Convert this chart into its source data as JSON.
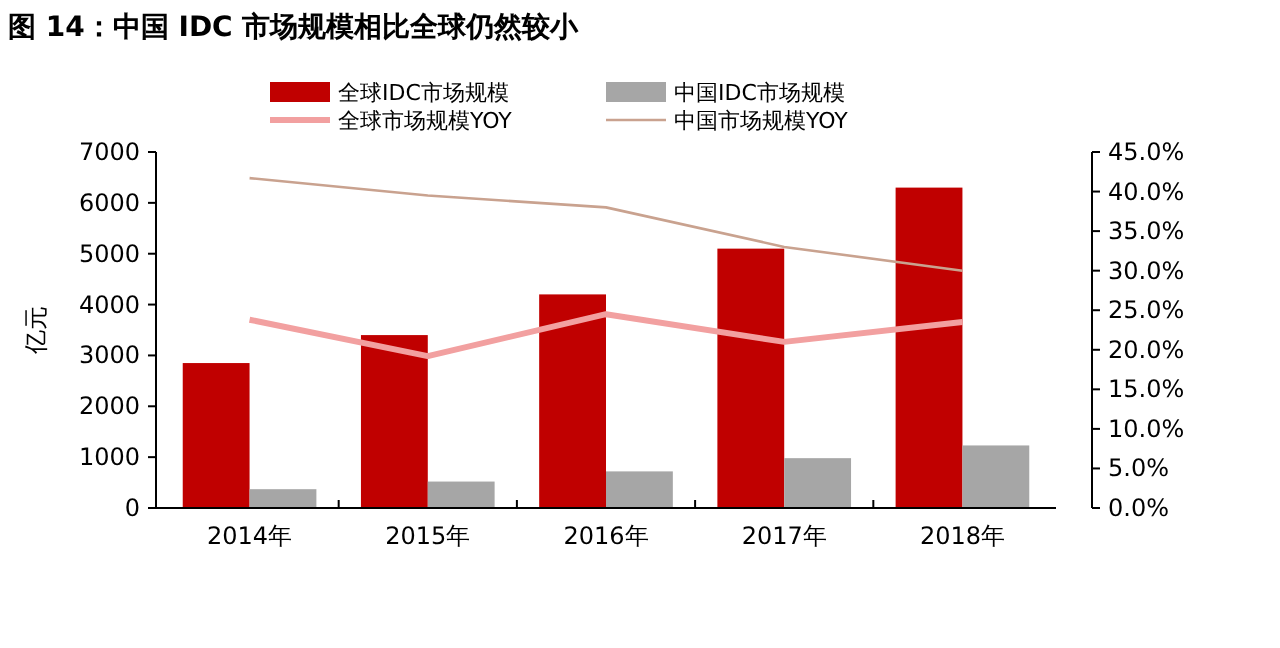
{
  "chart_data": {
    "type": "bar",
    "title": "图 14：中国 IDC 市场规模相比全球仍然较小",
    "ylabel": "亿元",
    "categories": [
      "2014年",
      "2015年",
      "2016年",
      "2017年",
      "2018年"
    ],
    "series": [
      {
        "name": "全球IDC市场规模",
        "color": "#c00000",
        "values": [
          2850,
          3400,
          4200,
          5100,
          6300
        ]
      },
      {
        "name": "中国IDC市场规模",
        "color": "#a6a6a6",
        "values": [
          370,
          520,
          720,
          980,
          1230
        ]
      },
      {
        "name": "全球市场规模YOY",
        "type": "line",
        "axis": "y2",
        "color": "#f2a0a0",
        "values": [
          23.8,
          19.2,
          24.5,
          21.0,
          23.5
        ]
      },
      {
        "name": "中国市场规模YOY",
        "type": "line",
        "axis": "y2",
        "color": "#c9a28f",
        "values": [
          41.7,
          39.5,
          38.0,
          33.0,
          30.0
        ]
      }
    ],
    "ylim": [
      0,
      7000
    ],
    "yticks": [
      0,
      1000,
      2000,
      3000,
      4000,
      5000,
      6000,
      7000
    ],
    "y2lim": [
      0,
      45
    ],
    "y2ticks": [
      {
        "value": 0,
        "label": "0.0%"
      },
      {
        "value": 5,
        "label": "5.0%"
      },
      {
        "value": 10,
        "label": "10.0%"
      },
      {
        "value": 15,
        "label": "15.0%"
      },
      {
        "value": 20,
        "label": "20.0%"
      },
      {
        "value": 25,
        "label": "25.0%"
      },
      {
        "value": 30,
        "label": "30.0%"
      },
      {
        "value": 35,
        "label": "35.0%"
      },
      {
        "value": 40,
        "label": "40.0%"
      },
      {
        "value": 45,
        "label": "45.0%"
      }
    ],
    "legend": "top",
    "grid": false
  }
}
